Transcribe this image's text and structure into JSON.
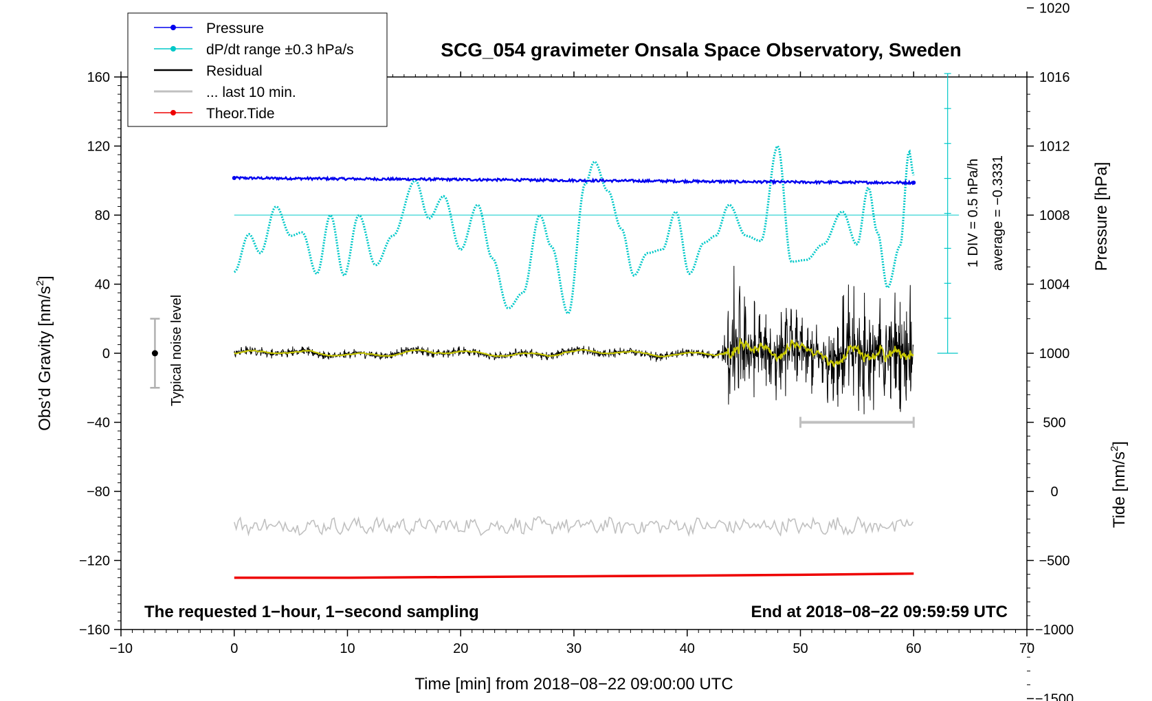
{
  "chart_data": {
    "type": "line",
    "title": "SCG_054 gravimeter Onsala Space Observatory, Sweden",
    "xlabel": "Time [min] from 2018−08−22 09:00:00 UTC",
    "ylabel_main": "Obs’d Gravity [nm/s",
    "ylabel_main_sup": "2",
    "ylabel_main_tail": "]",
    "ylabel_pressure": "Pressure [hPa]",
    "ylabel_tide": "Tide [nm/s",
    "ylabel_tide_sup": "2",
    "ylabel_tide_tail": "]",
    "xlim": [
      -10,
      70
    ],
    "ylim": [
      -160,
      160
    ],
    "x_ticks": [
      -10,
      0,
      10,
      20,
      30,
      40,
      50,
      60,
      70
    ],
    "x_tick_labels": [
      "−10",
      "0",
      "10",
      "20",
      "30",
      "40",
      "50",
      "60",
      "70"
    ],
    "y_ticks": [
      160,
      120,
      80,
      40,
      0,
      -40,
      -80,
      -120,
      -160
    ],
    "y_tick_labels": [
      "160",
      "120",
      "80",
      "40",
      "0",
      "−40",
      "−80",
      "−120",
      "−160"
    ],
    "pressure_axis": {
      "ticks": [
        1020,
        1016,
        1012,
        1008,
        1004
      ],
      "tick_labels": [
        "1020",
        "1016",
        "1012",
        "1008",
        "1004"
      ],
      "gravity_at_1000hpa": 0,
      "gravity_per_hpa": 10
    },
    "tide_axis": {
      "ticks": [
        1000,
        500,
        0,
        -500,
        -1000,
        -1500
      ],
      "tick_labels": [
        "1000",
        "500",
        "0",
        "−500",
        "−1000",
        "−1500"
      ],
      "gravity_at_zero": -80,
      "gravity_per_unit": 0.08
    },
    "legend": [
      {
        "label": "Pressure",
        "color": "#0000ee",
        "marker": true
      },
      {
        "label": "dP/dt range ±0.3 hPa/s",
        "color": "#00c8c8",
        "marker": true
      },
      {
        "label": "Residual",
        "color": "#000000",
        "marker": false
      },
      {
        "label": "... last 10 min.",
        "color": "#c0c0c0",
        "marker": false
      },
      {
        "label": "Theor.Tide",
        "color": "#ee0000",
        "marker": true
      }
    ],
    "pressure_series": {
      "name": "Pressure",
      "color": "#0000ee",
      "x": [
        0,
        10,
        20,
        30,
        40,
        50,
        60
      ],
      "y": [
        101.5,
        101.0,
        100.6,
        100.1,
        99.6,
        99.1,
        98.8
      ]
    },
    "dpdt_series": {
      "name": "dP/dt",
      "color": "#00c8c8",
      "x": [
        0,
        1.3,
        2.3,
        3.7,
        5.0,
        6.0,
        7.3,
        8.5,
        9.7,
        11.0,
        12.5,
        14.0,
        16.0,
        17.2,
        18.5,
        20.0,
        21.5,
        22.8,
        24.2,
        25.5,
        27.0,
        28.0,
        29.5,
        31.0,
        31.8,
        33.0,
        34.2,
        35.3,
        36.5,
        37.8,
        39.0,
        40.2,
        41.5,
        42.5,
        43.7,
        45.2,
        46.5,
        48.0,
        49.2,
        50.5,
        52.0,
        53.7,
        55.0,
        56.0,
        56.8,
        57.7,
        58.8,
        59.6,
        60.0
      ],
      "y": [
        47,
        69,
        58,
        85,
        68,
        70,
        46,
        80,
        45,
        80,
        51,
        68,
        100,
        78,
        91,
        60,
        86,
        55,
        26,
        35,
        80,
        62,
        23,
        98,
        111,
        94,
        72,
        45,
        58,
        60,
        82,
        46,
        64,
        68,
        86,
        68,
        65,
        120,
        53,
        54,
        63,
        82,
        63,
        96,
        70,
        38,
        62,
        117,
        103
      ]
    },
    "dpdt_reference_line": 80,
    "residual_series": {
      "name": "Residual",
      "color": "#000000",
      "x": [
        0,
        5,
        10,
        15,
        20,
        25,
        30,
        35,
        40,
        43,
        44,
        45,
        46,
        47,
        48,
        49,
        50,
        52,
        54,
        56,
        58,
        60
      ],
      "amplitude": [
        3,
        3,
        3,
        3,
        3,
        3,
        3,
        3,
        3,
        3,
        55,
        40,
        35,
        30,
        30,
        28,
        25,
        25,
        40,
        40,
        40,
        40
      ]
    },
    "residual_filtered_series": {
      "name": "Residual (filtered)",
      "color": "#c8c800"
    },
    "last10_series": {
      "name": "... last 10 min.",
      "color": "#c0c0c0",
      "x_range": [
        0,
        60
      ],
      "mean": -100,
      "amplitude": 4
    },
    "tide_series": {
      "name": "Theor.Tide",
      "color": "#ee0000",
      "x": [
        0,
        10,
        20,
        30,
        40,
        50,
        60
      ],
      "y": [
        -130,
        -130,
        -129.6,
        -129.2,
        -128.8,
        -128.3,
        -127.6
      ]
    },
    "noise_marker": {
      "x": -7,
      "y": 0,
      "low": -20,
      "high": 20,
      "label": "Typical noise level"
    },
    "last10_bar": {
      "x_start": 50,
      "x_end": 60,
      "y": -40
    },
    "dpdt_scale": {
      "label1": "1 DIV = 0.5 hPa/h",
      "label2": "average = −0.3331",
      "x": 63.0,
      "y_bottom": 0,
      "y_top": 162,
      "div": 8
    },
    "note_left": "The requested 1−hour, 1−second sampling",
    "note_right": "End at 2018−08−22 09:59:59 UTC",
    "colors": {
      "pressure": "#0000ee",
      "dpdt": "#00c8c8",
      "residual": "#000000",
      "filtered": "#c8c800",
      "last10": "#c0c0c0",
      "tide": "#ee0000",
      "axis": "#000000"
    }
  }
}
